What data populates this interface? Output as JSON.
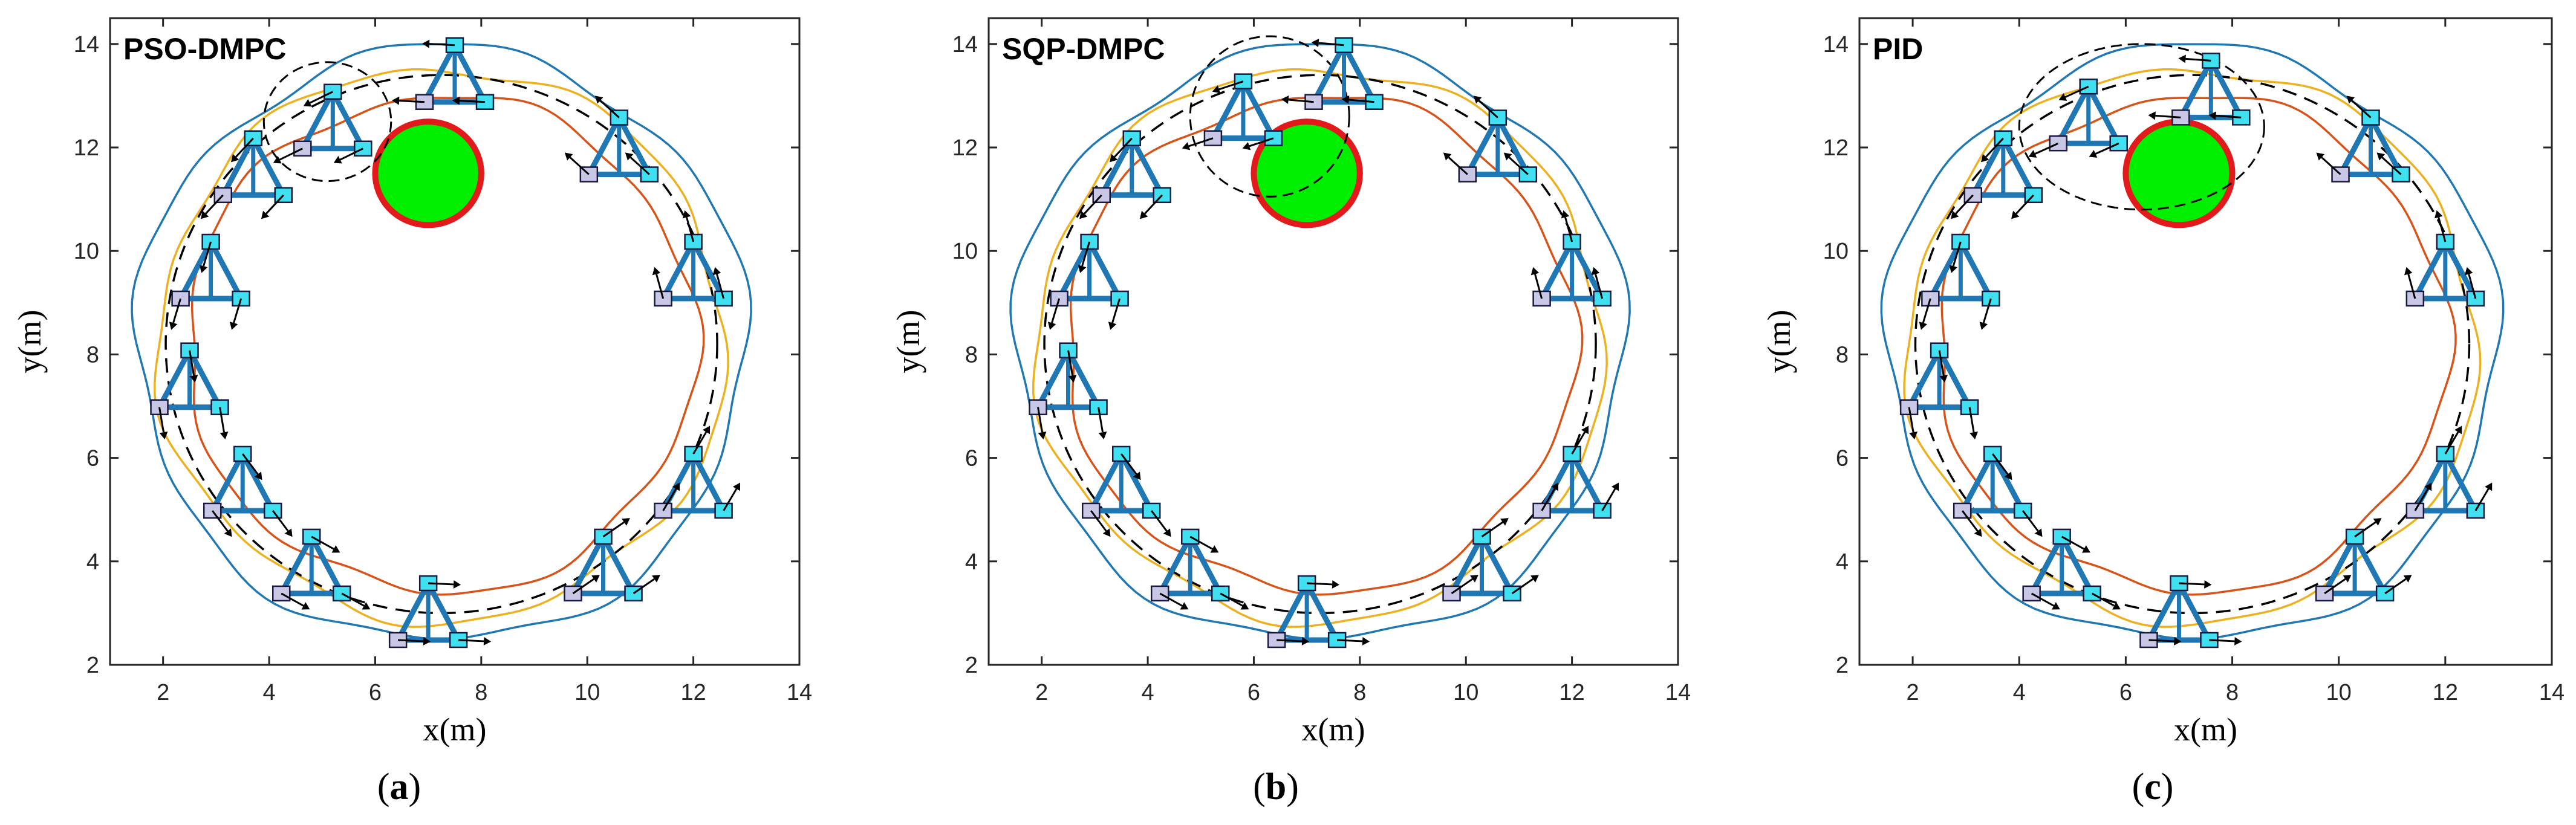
{
  "colors": {
    "obstacle_fill": "#00ee00",
    "obstacle_edge": "#e31a1c",
    "robot_link": "#1f77b4",
    "follower_block": "#40e0f0",
    "leader_block": "#c8c8e6",
    "reference": "#000000",
    "path_1": "#1f77b4",
    "path_2": "#d95319",
    "path_3": "#edb120"
  },
  "chart_data": [
    {
      "type": "line",
      "title": "PSO-DMPC",
      "caption_letter": "a",
      "xlabel": "x(m)",
      "ylabel": "y(m)",
      "xlim": [
        1,
        14
      ],
      "ylim": [
        2,
        14.5
      ],
      "xticks": [
        2,
        4,
        6,
        8,
        10,
        12,
        14
      ],
      "yticks": [
        2,
        4,
        6,
        8,
        10,
        12,
        14
      ],
      "obstacle": {
        "center": [
          7,
          11.5
        ],
        "radius": 1
      },
      "reference_circle": {
        "center": [
          7.25,
          8.2
        ],
        "radius": 5.2
      },
      "highlight_ellipse": {
        "center": [
          5.1,
          12.5
        ],
        "rx": 1.2,
        "ry": 1.15
      },
      "series": [
        {
          "name": "robot 1 path",
          "color_key": "path_1",
          "radius": 5.75
        },
        {
          "name": "robot 2 path",
          "color_key": "path_2",
          "radius": 4.8
        },
        {
          "name": "robot 3 path",
          "color_key": "path_3",
          "radius": 5.35
        }
      ],
      "formations": [
        {
          "x": 7.5,
          "y": 13.3
        },
        {
          "x": 10.6,
          "y": 11.9
        },
        {
          "x": 12.0,
          "y": 9.5
        },
        {
          "x": 12.0,
          "y": 5.4
        },
        {
          "x": 10.3,
          "y": 3.8
        },
        {
          "x": 7.0,
          "y": 2.9
        },
        {
          "x": 4.8,
          "y": 3.8
        },
        {
          "x": 3.5,
          "y": 5.4
        },
        {
          "x": 2.5,
          "y": 7.4
        },
        {
          "x": 2.9,
          "y": 9.5
        },
        {
          "x": 3.7,
          "y": 11.5
        },
        {
          "x": 5.2,
          "y": 12.4
        }
      ]
    },
    {
      "type": "line",
      "title": "SQP-DMPC",
      "caption_letter": "b",
      "xlabel": "x(m)",
      "ylabel": "y(m)",
      "xlim": [
        1,
        14
      ],
      "ylim": [
        2,
        14.5
      ],
      "xticks": [
        2,
        4,
        6,
        8,
        10,
        12,
        14
      ],
      "yticks": [
        2,
        4,
        6,
        8,
        10,
        12,
        14
      ],
      "obstacle": {
        "center": [
          7,
          11.5
        ],
        "radius": 1
      },
      "reference_circle": {
        "center": [
          7.25,
          8.2
        ],
        "radius": 5.2
      },
      "highlight_ellipse": {
        "center": [
          6.3,
          12.6
        ],
        "rx": 1.5,
        "ry": 1.55
      },
      "series": [
        {
          "name": "robot 1 path",
          "color_key": "path_1",
          "radius": 5.75
        },
        {
          "name": "robot 2 path",
          "color_key": "path_2",
          "radius": 4.8
        },
        {
          "name": "robot 3 path",
          "color_key": "path_3",
          "radius": 5.35
        }
      ],
      "formations": [
        {
          "x": 7.7,
          "y": 13.3
        },
        {
          "x": 10.6,
          "y": 11.9
        },
        {
          "x": 12.0,
          "y": 9.5
        },
        {
          "x": 12.0,
          "y": 5.4
        },
        {
          "x": 10.3,
          "y": 3.8
        },
        {
          "x": 7.0,
          "y": 2.9
        },
        {
          "x": 4.8,
          "y": 3.8
        },
        {
          "x": 3.5,
          "y": 5.4
        },
        {
          "x": 2.5,
          "y": 7.4
        },
        {
          "x": 2.9,
          "y": 9.5
        },
        {
          "x": 3.7,
          "y": 11.5
        },
        {
          "x": 5.8,
          "y": 12.6
        }
      ]
    },
    {
      "type": "line",
      "title": "PID",
      "caption_letter": "c",
      "xlabel": "x(m)",
      "ylabel": "y(m)",
      "xlim": [
        1,
        14
      ],
      "ylim": [
        2,
        14.5
      ],
      "xticks": [
        2,
        4,
        6,
        8,
        10,
        12,
        14
      ],
      "yticks": [
        2,
        4,
        6,
        8,
        10,
        12,
        14
      ],
      "obstacle": {
        "center": [
          7,
          11.5
        ],
        "radius": 1
      },
      "reference_circle": {
        "center": [
          7.25,
          8.2
        ],
        "radius": 5.2
      },
      "highlight_ellipse": {
        "center": [
          6.3,
          12.4
        ],
        "rx": 2.3,
        "ry": 1.6
      },
      "series": [
        {
          "name": "robot 1 path",
          "color_key": "path_1",
          "radius": 5.75
        },
        {
          "name": "robot 2 path",
          "color_key": "path_2",
          "radius": 4.8
        },
        {
          "name": "robot 3 path",
          "color_key": "path_3",
          "radius": 5.35
        }
      ],
      "formations": [
        {
          "x": 7.6,
          "y": 13.0
        },
        {
          "x": 10.6,
          "y": 11.9
        },
        {
          "x": 12.0,
          "y": 9.5
        },
        {
          "x": 12.0,
          "y": 5.4
        },
        {
          "x": 10.3,
          "y": 3.8
        },
        {
          "x": 7.0,
          "y": 2.9
        },
        {
          "x": 4.8,
          "y": 3.8
        },
        {
          "x": 3.5,
          "y": 5.4
        },
        {
          "x": 2.5,
          "y": 7.4
        },
        {
          "x": 2.9,
          "y": 9.5
        },
        {
          "x": 3.7,
          "y": 11.5
        },
        {
          "x": 5.3,
          "y": 12.5
        }
      ]
    }
  ]
}
